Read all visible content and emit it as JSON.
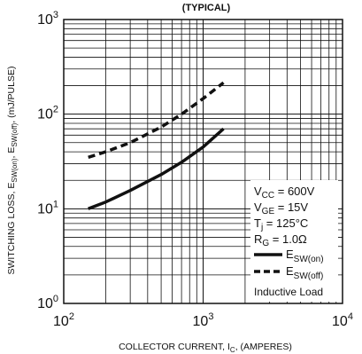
{
  "chart_data": {
    "type": "line",
    "title": "(TYPICAL)",
    "x_scale": "log",
    "y_scale": "log",
    "xlim": [
      100,
      10000
    ],
    "ylim": [
      1,
      1000
    ],
    "grid": true,
    "xlabel": {
      "main": "COLLECTOR CURRENT, I",
      "sub": "C",
      "tail": ", (AMPERES)"
    },
    "ylabel": {
      "p1": "SWITCHING LOSS, E",
      "s1": "SW(on)",
      "p2": ", E",
      "s2": "SW(off)",
      "p3": ", (mJ/PULSE)"
    },
    "x_ticks": [
      {
        "value": 100,
        "base": "10",
        "exp": "2"
      },
      {
        "value": 1000,
        "base": "10",
        "exp": "3"
      },
      {
        "value": 10000,
        "base": "10",
        "exp": "4"
      }
    ],
    "y_ticks": [
      {
        "value": 1,
        "base": "10",
        "exp": "0"
      },
      {
        "value": 10,
        "base": "10",
        "exp": "1"
      },
      {
        "value": 100,
        "base": "10",
        "exp": "2"
      },
      {
        "value": 1000,
        "base": "10",
        "exp": "3"
      }
    ],
    "series": [
      {
        "name": "E",
        "name_sub": "SW(on)",
        "style": "solid",
        "color": "#111111",
        "x": [
          150,
          200,
          300,
          500,
          700,
          1000,
          1400
        ],
        "y": [
          10,
          11.8,
          15.6,
          23,
          31,
          45,
          70
        ]
      },
      {
        "name": "E",
        "name_sub": "SW(off)",
        "style": "dashed",
        "color": "#111111",
        "x": [
          150,
          200,
          300,
          500,
          700,
          1000,
          1400
        ],
        "y": [
          35,
          40,
          50,
          73,
          100,
          146,
          215
        ]
      }
    ],
    "conditions": [
      {
        "main": "V",
        "sub": "CC",
        "tail": " = 600V"
      },
      {
        "main": "V",
        "sub": "GE",
        "tail": " = 15V"
      },
      {
        "main": "T",
        "sub": "j",
        "tail": " = 125°C"
      },
      {
        "main": "R",
        "sub": "G",
        "tail": " = 1.0Ω"
      }
    ],
    "note": "Inductive Load"
  }
}
